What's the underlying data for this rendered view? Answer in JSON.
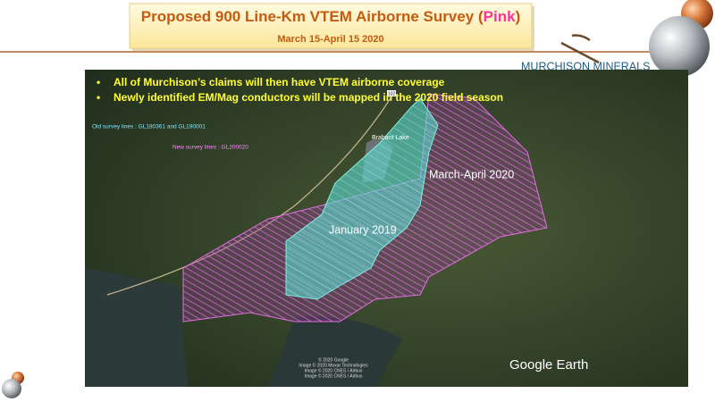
{
  "header": {
    "title_parts": [
      "Proposed 900 Line-Km VTEM Airborne Survey (",
      "Pink",
      ")"
    ],
    "subtitle": "March 15-April 15 2020"
  },
  "logo": {
    "name": "MURCHISON MINERALS"
  },
  "bullets": [
    "All of Murchison’s claims will then have VTEM airborne coverage",
    "Newly identified EM/Mag conductors will be mapped in the 2020 field season"
  ],
  "map": {
    "legend": [
      "Old survey lines : GL180361 and GL190001",
      "New survey lines : GL200020"
    ],
    "place": "Brabant Lake",
    "road": "102",
    "areas": [
      "March-April 2020",
      "January 2019"
    ],
    "credits": [
      "© 2020 Google",
      "Image © 2020 Maxar Technologies",
      "Image © 2020 CNES / Airbus",
      "Image © 2020 CNES / Airbus"
    ],
    "brand": "Google Earth"
  }
}
